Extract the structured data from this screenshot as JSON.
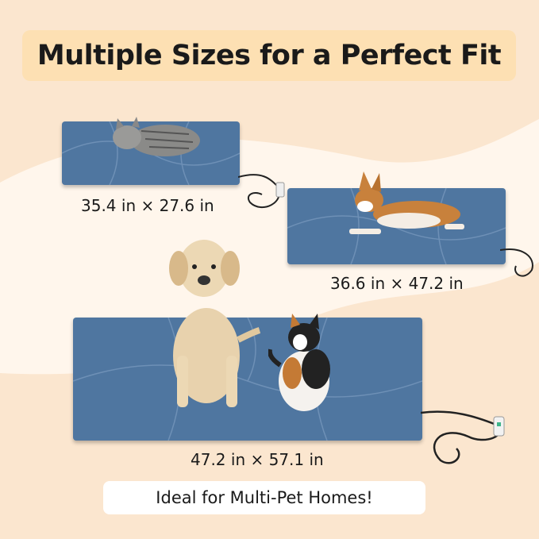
{
  "title": "Multiple Sizes for a Perfect Fit",
  "sizes": {
    "small": "35.4 in × 27.6 in",
    "medium": "36.6 in × 47.2 in",
    "large": "47.2 in × 57.1 in"
  },
  "tagline": "Ideal for Multi-Pet Homes!",
  "colors": {
    "background": "#fbe6cf",
    "title_pill": "#fde0b3",
    "mat": "#4f76a0"
  }
}
